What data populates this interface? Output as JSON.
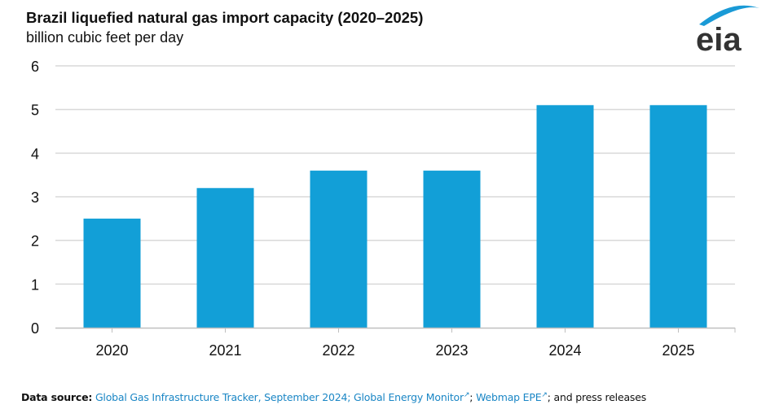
{
  "chart_data": {
    "type": "bar",
    "title": "Brazil liquefied natural gas import capacity (2020–2025)",
    "subtitle": "billion cubic feet per day",
    "xlabel": "",
    "ylabel": "billion cubic feet per day",
    "categories": [
      "2020",
      "2021",
      "2022",
      "2023",
      "2024",
      "2025"
    ],
    "values": [
      2.5,
      3.2,
      3.6,
      3.6,
      5.1,
      5.1
    ],
    "ylim": [
      0,
      6
    ],
    "yticks": [
      "0",
      "1",
      "2",
      "3",
      "4",
      "5",
      "6"
    ],
    "grid": true,
    "legend": "none",
    "bar_color": "#129fd7",
    "grid_color": "#d9d9d9"
  },
  "logo": {
    "text": "eia",
    "arc_color": "#1a9ad6",
    "text_color": "#333333"
  },
  "source": {
    "label": "Data source:",
    "link1": "Global Gas Infrastructure Tracker, September 2024; Global Energy Monitor",
    "sep1": "; ",
    "link2": "Webmap EPE",
    "tail": "; and press releases",
    "ext_icon": "external-link-icon",
    "link_color": "#1a86c5"
  }
}
